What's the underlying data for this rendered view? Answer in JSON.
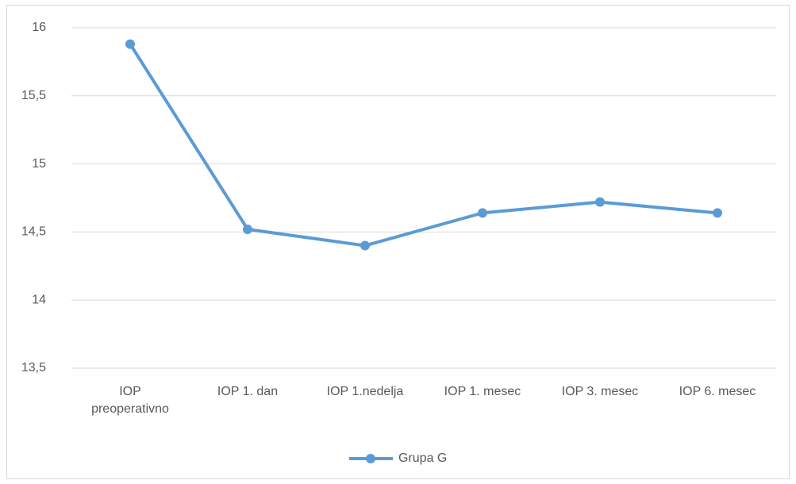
{
  "chart_data": {
    "type": "line",
    "categories": [
      "IOP preoperativno",
      "IOP 1. dan",
      "IOP 1.nedelja",
      "IOP 1. mesec",
      "IOP 3. mesec",
      "IOP 6. mesec"
    ],
    "series": [
      {
        "name": "Grupa G",
        "color": "#5b9bd5",
        "values": [
          15.88,
          14.52,
          14.4,
          14.64,
          14.72,
          14.64
        ]
      }
    ],
    "ylim": [
      13.5,
      16
    ],
    "yticks": [
      {
        "value": 13.5,
        "label": "13,5"
      },
      14,
      {
        "value": 14.5,
        "label": "14,5"
      },
      15,
      {
        "value": 15.5,
        "label": "15,5"
      },
      16
    ],
    "grid": true,
    "legend": "bottom"
  }
}
